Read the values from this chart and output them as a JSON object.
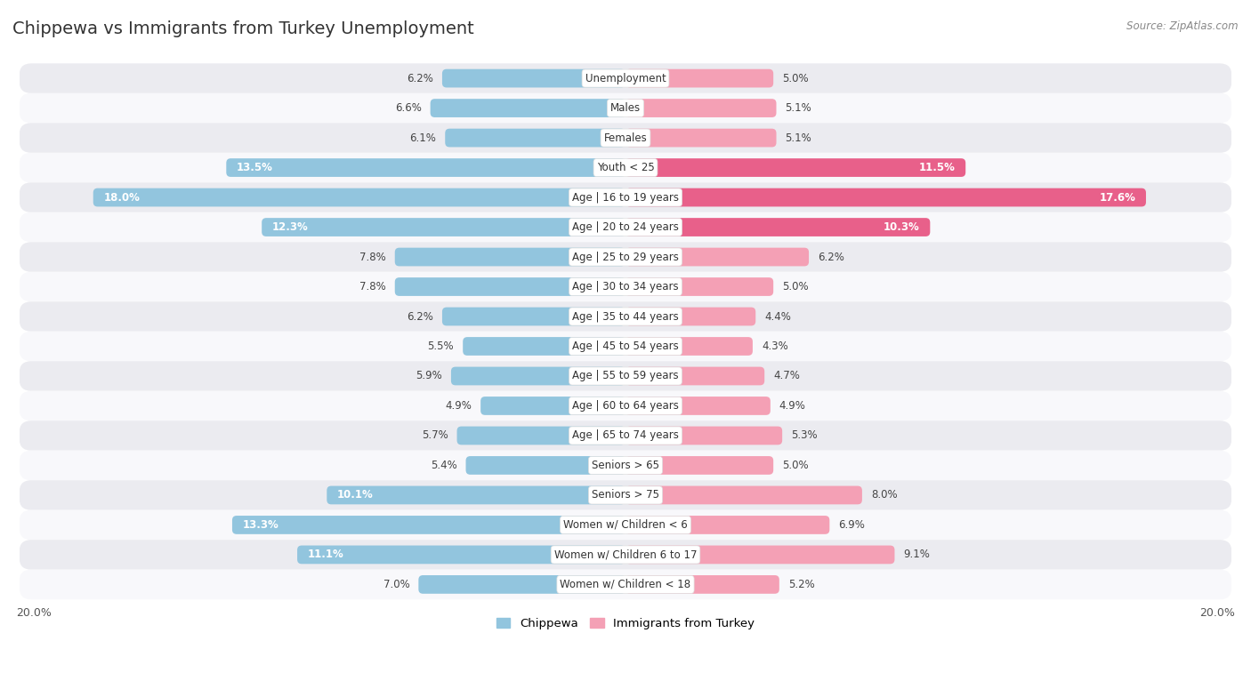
{
  "title": "Chippewa vs Immigrants from Turkey Unemployment",
  "source": "Source: ZipAtlas.com",
  "categories": [
    "Unemployment",
    "Males",
    "Females",
    "Youth < 25",
    "Age | 16 to 19 years",
    "Age | 20 to 24 years",
    "Age | 25 to 29 years",
    "Age | 30 to 34 years",
    "Age | 35 to 44 years",
    "Age | 45 to 54 years",
    "Age | 55 to 59 years",
    "Age | 60 to 64 years",
    "Age | 65 to 74 years",
    "Seniors > 65",
    "Seniors > 75",
    "Women w/ Children < 6",
    "Women w/ Children 6 to 17",
    "Women w/ Children < 18"
  ],
  "chippewa": [
    6.2,
    6.6,
    6.1,
    13.5,
    18.0,
    12.3,
    7.8,
    7.8,
    6.2,
    5.5,
    5.9,
    4.9,
    5.7,
    5.4,
    10.1,
    13.3,
    11.1,
    7.0
  ],
  "turkey": [
    5.0,
    5.1,
    5.1,
    11.5,
    17.6,
    10.3,
    6.2,
    5.0,
    4.4,
    4.3,
    4.7,
    4.9,
    5.3,
    5.0,
    8.0,
    6.9,
    9.1,
    5.2
  ],
  "chippewa_color": "#92c5de",
  "turkey_color_light": "#f4a0b5",
  "turkey_color_dark": "#e8608a",
  "highlight_threshold": 10.0,
  "bar_height": 0.62,
  "bg_color_odd": "#ebebf0",
  "bg_color_even": "#f8f8fb",
  "xlim": 20.0,
  "legend_label_chippewa": "Chippewa",
  "legend_label_turkey": "Immigrants from Turkey",
  "title_fontsize": 14,
  "source_fontsize": 8.5,
  "label_fontsize": 8.5,
  "cat_fontsize": 8.5
}
